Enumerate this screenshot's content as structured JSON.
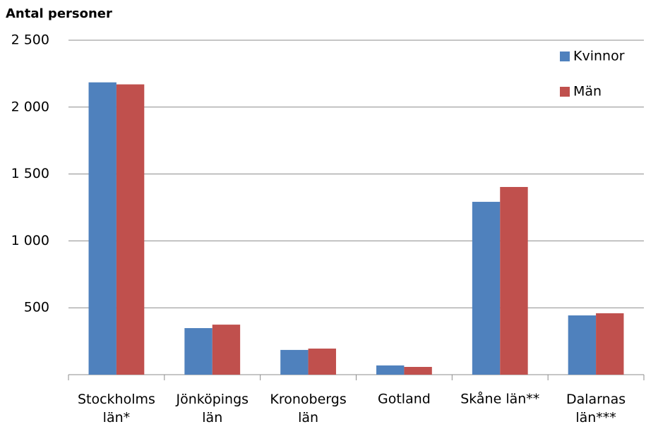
{
  "chart_data": {
    "type": "bar",
    "title": "Antal personer",
    "categories": [
      "Stockholms\nlän*",
      "Jönköpings\nlän",
      "Kronobergs\nlän",
      "Gotland",
      "Skåne län**",
      "Dalarnas\nlän***"
    ],
    "series": [
      {
        "name": "Kvinnor",
        "color": "#4f81bd",
        "values": [
          2185,
          348,
          185,
          69,
          1292,
          443
        ]
      },
      {
        "name": "Män",
        "color": "#c0504d",
        "values": [
          2170,
          374,
          195,
          58,
          1403,
          459
        ]
      }
    ],
    "ylim": [
      0,
      2500
    ],
    "yticks": [
      {
        "value": 500,
        "label": "500"
      },
      {
        "value": 1000,
        "label": "1 000"
      },
      {
        "value": 1500,
        "label": "1 500"
      },
      {
        "value": 2000,
        "label": "2 000"
      },
      {
        "value": 2500,
        "label": "2 500"
      }
    ],
    "grid": true,
    "legend": "top-right"
  }
}
